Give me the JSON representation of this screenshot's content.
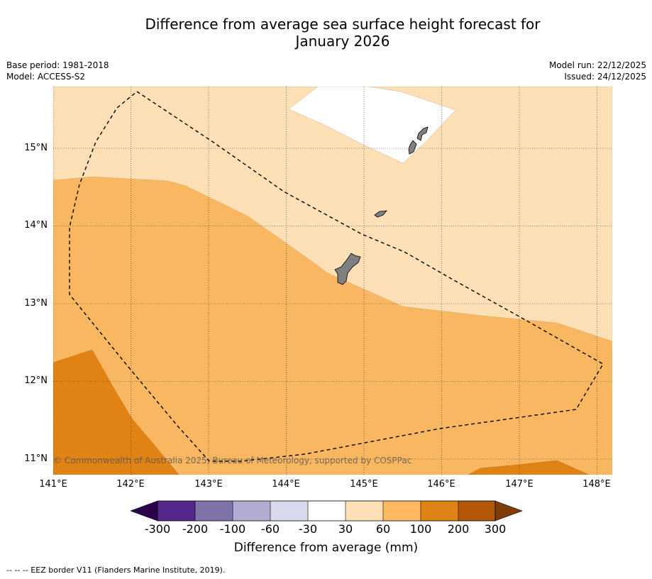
{
  "title_line1": "Difference from average sea surface height forecast for",
  "title_line2": "January 2026",
  "meta_left": {
    "base_period": "Base period: 1981-2018",
    "model": "Model: ACCESS-S2"
  },
  "meta_right": {
    "model_run": "Model run: 22/12/2025",
    "issued": "Issued: 24/12/2025"
  },
  "map": {
    "lon_labels": [
      "141°E",
      "142°E",
      "143°E",
      "144°E",
      "145°E",
      "146°E",
      "147°E",
      "148°E"
    ],
    "lat_labels": [
      "15°N",
      "14°N",
      "13°N",
      "12°N",
      "11°N"
    ],
    "copyright": "© Commonwealth of Australia 2025, Bureau of Meteorology, supported by COSPPac",
    "colors": {
      "c30_60": "#fde0b6",
      "c60_100": "#f9b761",
      "c100_200": "#e08214",
      "c200_300": "#b35806",
      "land": "#808080"
    }
  },
  "colorbar": {
    "ticks": [
      "-300",
      "-200",
      "-100",
      "-60",
      "-30",
      "30",
      "60",
      "100",
      "200",
      "300"
    ],
    "colors": [
      "#2d004b",
      "#542788",
      "#8073ac",
      "#b2abd2",
      "#d8daeb",
      "#ffffff",
      "#fee0b6",
      "#fdb863",
      "#e08214",
      "#b35806",
      "#7f3b08"
    ],
    "label": "Difference from average (mm)"
  },
  "footer": "--  --  -- EEZ border V11 (Flanders Marine Institute, 2019)."
}
